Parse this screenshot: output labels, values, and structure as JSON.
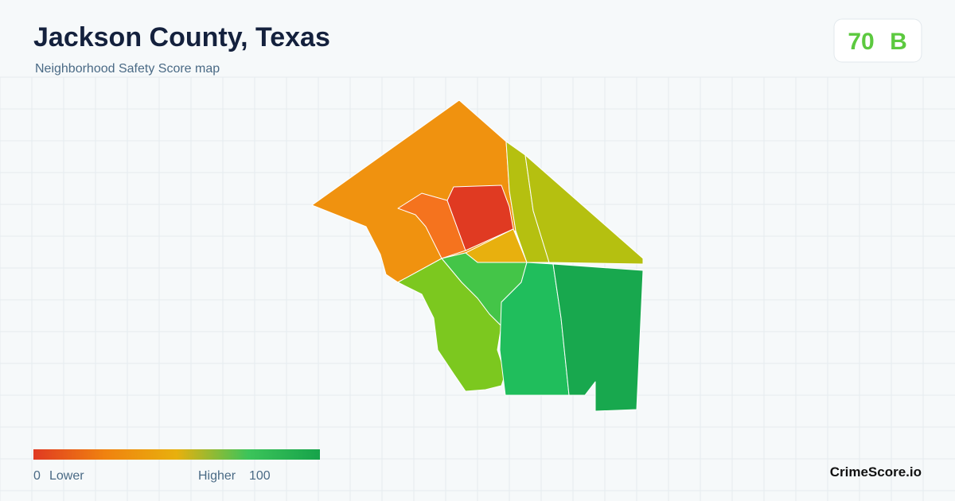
{
  "header": {
    "title": "Jackson County, Texas",
    "subtitle": "Neighborhood Safety Score map"
  },
  "score": {
    "value": "70",
    "grade": "B"
  },
  "legend": {
    "min": "0",
    "min_label": "Lower",
    "max_label": "Higher",
    "max": "100"
  },
  "brand": "CrimeScore.io"
}
